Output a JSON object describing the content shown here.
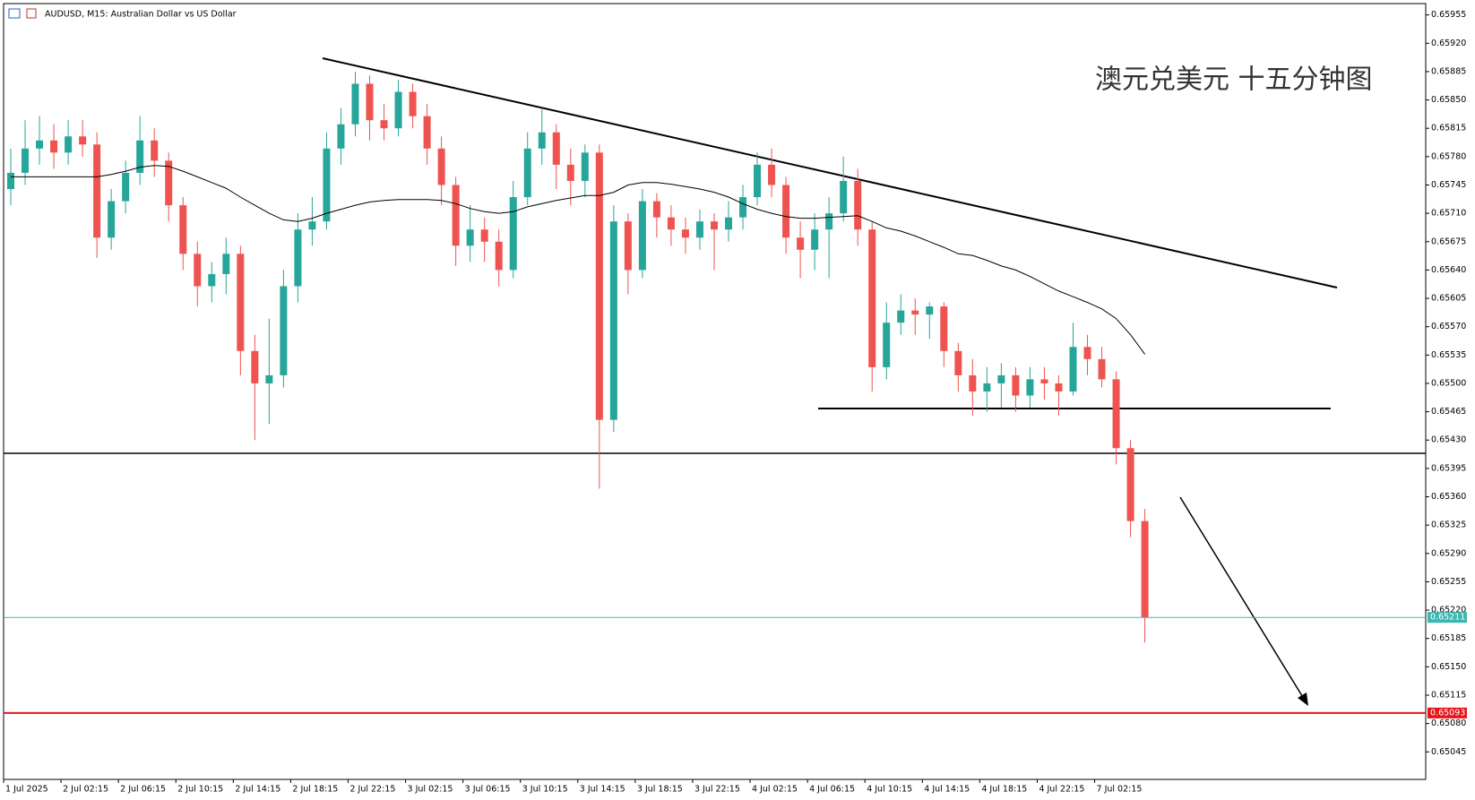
{
  "chart_data": {
    "type": "candlestick",
    "title": "AUDUSD, M15:  Australian Dollar vs US Dollar",
    "annotation": "澳元兑美元 十五分钟图",
    "categories": [
      "1 Jul 2025",
      null,
      null,
      null,
      "2 Jul 02:15",
      null,
      null,
      null,
      "2 Jul 06:15",
      null,
      null,
      null,
      "2 Jul 10:15",
      null,
      null,
      null,
      "2 Jul 14:15",
      null,
      null,
      null,
      "2 Jul 18:15",
      null,
      null,
      null,
      "2 Jul 22:15",
      null,
      null,
      null,
      "3 Jul 02:15",
      null,
      null,
      null,
      "3 Jul 06:15",
      null,
      null,
      null,
      "3 Jul 10:15",
      null,
      null,
      null,
      "3 Jul 14:15",
      null,
      null,
      null,
      "3 Jul 18:15",
      null,
      null,
      null,
      "3 Jul 22:15",
      null,
      null,
      null,
      "4 Jul 02:15",
      null,
      null,
      null,
      "4 Jul 06:15",
      null,
      null,
      null,
      "4 Jul 10:15",
      null,
      null,
      null,
      "4 Jul 14:15",
      null,
      null,
      null,
      "4 Jul 18:15",
      null,
      null,
      null,
      "4 Jul 22:15",
      null,
      null,
      null,
      "7 Jul 02:15",
      null,
      null,
      null
    ],
    "open": [
      0.6574,
      0.6576,
      0.6579,
      0.658,
      0.65785,
      0.65805,
      0.65795,
      0.6568,
      0.65725,
      0.6576,
      0.658,
      0.65775,
      0.6572,
      0.6566,
      0.6562,
      0.65635,
      0.6566,
      0.6554,
      0.655,
      0.6551,
      0.6562,
      0.6569,
      0.657,
      0.6579,
      0.6582,
      0.6587,
      0.65825,
      0.65815,
      0.6586,
      0.6583,
      0.6579,
      0.65745,
      0.6567,
      0.6569,
      0.65675,
      0.6564,
      0.6573,
      0.6579,
      0.6581,
      0.6577,
      0.6575,
      0.65785,
      0.65455,
      0.657,
      0.6564,
      0.65725,
      0.65705,
      0.6569,
      0.6568,
      0.657,
      0.6569,
      0.65705,
      0.6573,
      0.6577,
      0.65745,
      0.6568,
      0.65665,
      0.6569,
      0.6571,
      0.6575,
      0.6569,
      0.6552,
      0.65575,
      0.6559,
      0.65585,
      0.65595,
      0.6554,
      0.6551,
      0.6549,
      0.655,
      0.6551,
      0.65485,
      0.65505,
      0.655,
      0.6549,
      0.65545,
      0.6553,
      0.65505,
      0.6542,
      0.6533
    ],
    "high": [
      0.6579,
      0.65825,
      0.6583,
      0.6582,
      0.65825,
      0.65825,
      0.6581,
      0.6574,
      0.65775,
      0.6583,
      0.65815,
      0.65785,
      0.6573,
      0.65675,
      0.6565,
      0.6568,
      0.6567,
      0.6556,
      0.6558,
      0.6564,
      0.6571,
      0.6573,
      0.6581,
      0.6584,
      0.65885,
      0.6588,
      0.65845,
      0.65875,
      0.6587,
      0.65845,
      0.65805,
      0.65755,
      0.6572,
      0.65705,
      0.6569,
      0.6575,
      0.6581,
      0.6584,
      0.6582,
      0.6579,
      0.65795,
      0.65795,
      0.6572,
      0.6571,
      0.6574,
      0.65735,
      0.6572,
      0.65705,
      0.65715,
      0.6571,
      0.65725,
      0.65745,
      0.65785,
      0.6579,
      0.65755,
      0.657,
      0.6571,
      0.6573,
      0.6578,
      0.65765,
      0.657,
      0.656,
      0.6561,
      0.65605,
      0.656,
      0.656,
      0.6555,
      0.6553,
      0.6552,
      0.65525,
      0.6552,
      0.6552,
      0.6552,
      0.6551,
      0.65575,
      0.6556,
      0.65545,
      0.65515,
      0.6543,
      0.65345
    ],
    "low": [
      0.6572,
      0.65745,
      0.6577,
      0.65765,
      0.6577,
      0.6578,
      0.65655,
      0.65665,
      0.6571,
      0.65745,
      0.65755,
      0.657,
      0.6564,
      0.65595,
      0.656,
      0.6561,
      0.6551,
      0.6543,
      0.6545,
      0.65495,
      0.656,
      0.6567,
      0.6569,
      0.6577,
      0.65805,
      0.658,
      0.658,
      0.65805,
      0.65815,
      0.6577,
      0.6572,
      0.65645,
      0.6565,
      0.6565,
      0.6562,
      0.6563,
      0.6572,
      0.6577,
      0.6574,
      0.6572,
      0.6573,
      0.6537,
      0.6544,
      0.6561,
      0.6563,
      0.6568,
      0.6567,
      0.6566,
      0.65665,
      0.6564,
      0.65675,
      0.6569,
      0.6572,
      0.6573,
      0.6566,
      0.6563,
      0.6564,
      0.6563,
      0.657,
      0.6567,
      0.6549,
      0.65505,
      0.6556,
      0.6556,
      0.65555,
      0.6552,
      0.6549,
      0.6546,
      0.65465,
      0.6547,
      0.65465,
      0.6547,
      0.6548,
      0.6546,
      0.65485,
      0.6551,
      0.65495,
      0.654,
      0.6531,
      0.6518
    ],
    "close": [
      0.6576,
      0.6579,
      0.658,
      0.65785,
      0.65805,
      0.65795,
      0.6568,
      0.65725,
      0.6576,
      0.658,
      0.65775,
      0.6572,
      0.6566,
      0.6562,
      0.65635,
      0.6566,
      0.6554,
      0.655,
      0.6551,
      0.6562,
      0.6569,
      0.657,
      0.6579,
      0.6582,
      0.6587,
      0.65825,
      0.65815,
      0.6586,
      0.6583,
      0.6579,
      0.65745,
      0.6567,
      0.6569,
      0.65675,
      0.6564,
      0.6573,
      0.6579,
      0.6581,
      0.6577,
      0.6575,
      0.65785,
      0.65455,
      0.657,
      0.6564,
      0.65725,
      0.65705,
      0.6569,
      0.6568,
      0.657,
      0.6569,
      0.65705,
      0.6573,
      0.6577,
      0.65745,
      0.6568,
      0.65665,
      0.6569,
      0.6571,
      0.6575,
      0.6569,
      0.6552,
      0.65575,
      0.6559,
      0.65585,
      0.65595,
      0.6554,
      0.6551,
      0.6549,
      0.655,
      0.6551,
      0.65485,
      0.65505,
      0.655,
      0.6549,
      0.65545,
      0.6553,
      0.65505,
      0.6542,
      0.6533,
      0.65211
    ],
    "up_color": "#26a69a",
    "down_color": "#ef5350",
    "moving_average": {
      "color": "#000000",
      "values": [
        0.65755,
        0.65755,
        0.65755,
        0.65755,
        0.65755,
        0.65755,
        0.65755,
        0.65758,
        0.65762,
        0.65767,
        0.65769,
        0.65768,
        0.65762,
        0.65755,
        0.65748,
        0.65741,
        0.6573,
        0.6572,
        0.6571,
        0.65702,
        0.657,
        0.65704,
        0.6571,
        0.65715,
        0.6572,
        0.65724,
        0.65726,
        0.65727,
        0.65727,
        0.65727,
        0.65726,
        0.65722,
        0.65716,
        0.65712,
        0.6571,
        0.65712,
        0.65718,
        0.65722,
        0.65726,
        0.65729,
        0.65732,
        0.65732,
        0.65736,
        0.65745,
        0.65748,
        0.65748,
        0.65746,
        0.65743,
        0.6574,
        0.65736,
        0.6573,
        0.65722,
        0.65715,
        0.6571,
        0.65706,
        0.65704,
        0.65704,
        0.65705,
        0.65706,
        0.65707,
        0.657,
        0.65692,
        0.65688,
        0.65682,
        0.65675,
        0.65668,
        0.6566,
        0.65658,
        0.65652,
        0.65645,
        0.6564,
        0.65632,
        0.65623,
        0.65614,
        0.65607,
        0.656,
        0.65592,
        0.6558,
        0.6556,
        0.65536
      ]
    },
    "price_lines": [
      {
        "value": 0.65211,
        "color": "#3cb8b0"
      },
      {
        "value": 0.65093,
        "color": "#e8141c"
      }
    ],
    "ylim": [
      0.65011,
      0.65969
    ],
    "yticks": [
      0.65955,
      {
        "value": 0.6592,
        "label": "0.65920"
      },
      0.65885,
      {
        "value": 0.6585,
        "label": "0.65850"
      },
      0.65815,
      {
        "value": 0.6578,
        "label": "0.65780"
      },
      0.65745,
      {
        "value": 0.6571,
        "label": "0.65710"
      },
      0.65675,
      {
        "value": 0.6564,
        "label": "0.65640"
      },
      0.65605,
      {
        "value": 0.6557,
        "label": "0.65570"
      },
      0.65535,
      {
        "value": 0.655,
        "label": "0.65500"
      },
      0.65465,
      {
        "value": 0.6543,
        "label": "0.65430"
      },
      0.65395,
      {
        "value": 0.6536,
        "label": "0.65360"
      },
      0.65325,
      {
        "value": 0.6529,
        "label": "0.65290"
      },
      0.65255,
      {
        "value": 0.6522,
        "label": "0.65220"
      },
      0.65185,
      {
        "value": 0.6515,
        "label": "0.65150"
      },
      0.65115,
      {
        "value": 0.6508,
        "label": "0.65080"
      },
      0.65045
    ],
    "grid": false
  }
}
